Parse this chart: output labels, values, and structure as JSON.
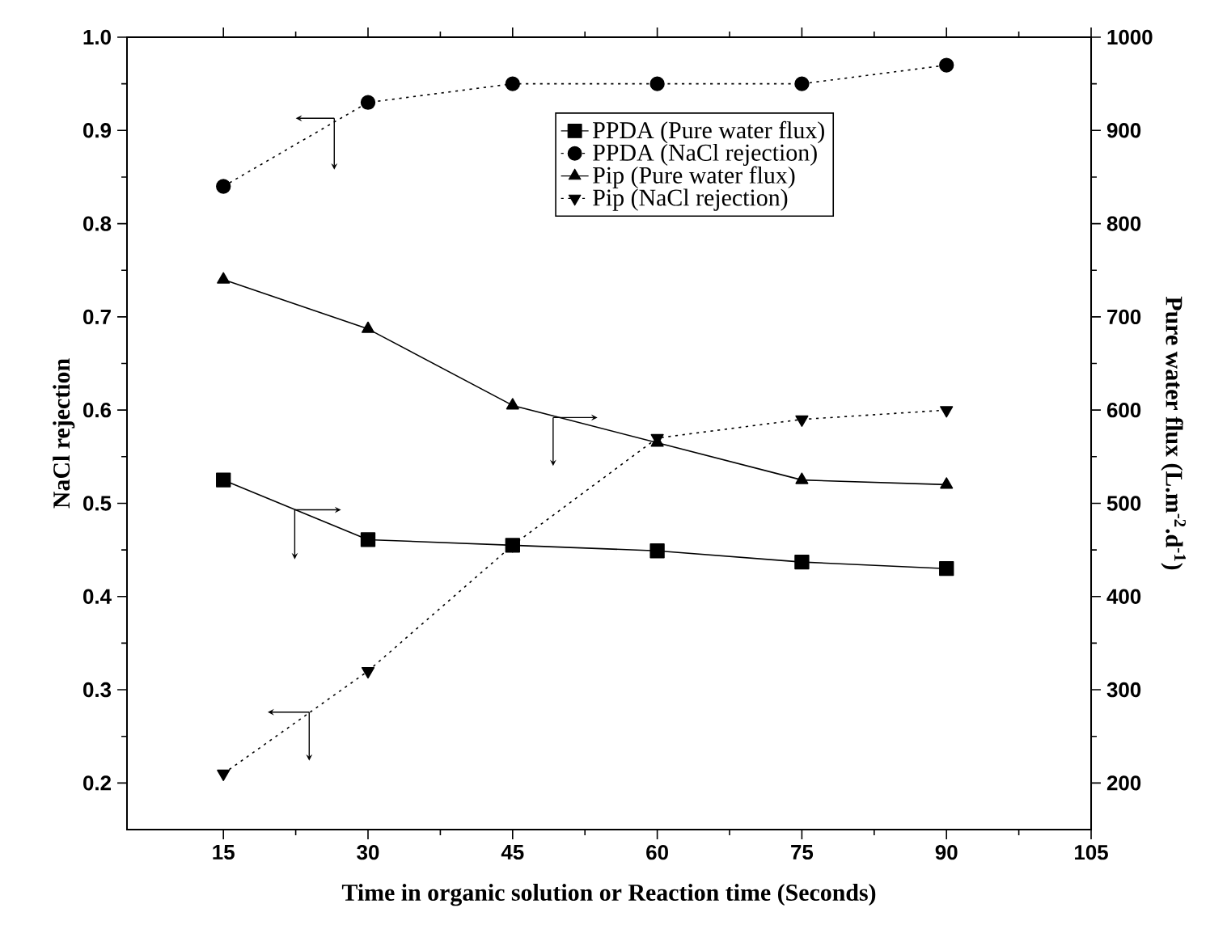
{
  "chart_data": {
    "type": "line",
    "xlabel": "Time in organic solution or Reaction time (Seconds)",
    "ylabel": "NaCl rejection",
    "y2label": "Pure water flux (L.m$^{-2}$.d$^{-1}$)",
    "x": [
      15,
      30,
      45,
      60,
      75,
      90
    ],
    "xlim": [
      5,
      105
    ],
    "xticks": [
      15,
      30,
      45,
      60,
      75,
      90,
      105
    ],
    "ylim": [
      0.15,
      1.0
    ],
    "yticks": [
      0.2,
      0.3,
      0.4,
      0.5,
      0.6,
      0.7,
      0.8,
      0.9,
      {
        "value": 1.0,
        "label": "1.0"
      }
    ],
    "y2lim": [
      150,
      1000
    ],
    "y2ticks": [
      200,
      300,
      400,
      500,
      600,
      700,
      800,
      900,
      1000
    ],
    "legend": "top right",
    "grid": false,
    "series": [
      {
        "name": "PPDA (Pure water flux)",
        "color": "#000000",
        "axis": "y2",
        "marker": "square",
        "line_style": "solid",
        "values": [
          525,
          461,
          455,
          449,
          437,
          430
        ]
      },
      {
        "name": "PPDA (NaCl rejection)",
        "color": "#000000",
        "marker": "circle",
        "line_style": "dotted",
        "values": [
          0.84,
          0.93,
          0.95,
          0.95,
          0.95,
          0.97
        ]
      },
      {
        "name": "Pip (Pure water flux)",
        "color": "#000000",
        "axis": "y2",
        "marker": "triangle",
        "line_style": "solid",
        "values": [
          740,
          687,
          605,
          565,
          525,
          520
        ]
      },
      {
        "name": "Pip (NaCl rejection)",
        "color": "#000000",
        "marker": "triangle down",
        "line_style": "dotted",
        "values": [
          0.21,
          0.32,
          0.455,
          0.57,
          0.59,
          0.6
        ]
      }
    ]
  }
}
